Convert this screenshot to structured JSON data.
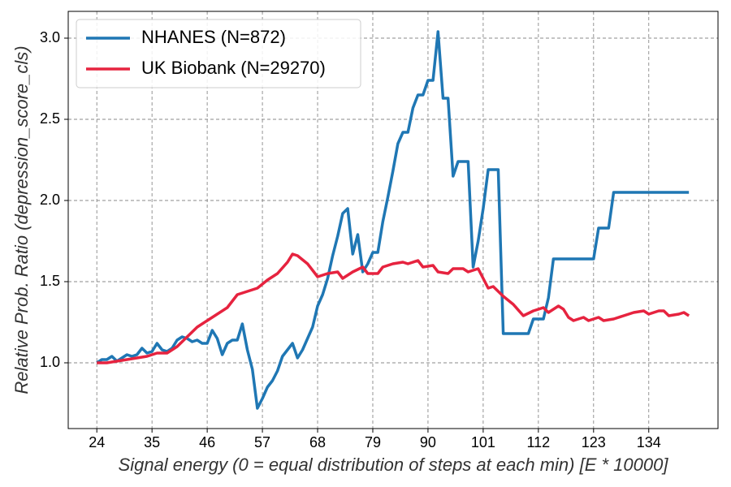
{
  "chart_data": {
    "type": "line",
    "xlabel": "Signal energy (0 = equal distribution of steps at each min) [E * 10000]",
    "ylabel": "Relative Prob. Ratio (depression_score_cls)",
    "xlim": [
      18.3,
      147.8
    ],
    "ylim": [
      0.595,
      3.165
    ],
    "xticks": [
      24,
      35,
      46,
      57,
      68,
      79,
      90,
      101,
      112,
      123,
      134
    ],
    "yticks": [
      {
        "value": 1,
        "label": "1.0"
      },
      1.5,
      {
        "value": 2,
        "label": "2.0"
      },
      2.5,
      {
        "value": 3,
        "label": "3.0"
      }
    ],
    "grid": true,
    "legend": "upper left",
    "series": [
      {
        "name": "NHANES (N=872)",
        "color": "#1f77b4",
        "x": [
          24,
          25,
          26,
          27,
          28,
          29,
          30,
          31,
          32,
          33,
          34,
          35,
          36,
          37,
          38,
          39,
          40,
          41,
          42,
          43,
          44,
          45,
          46,
          47,
          48,
          49,
          50,
          51,
          52,
          53,
          54,
          55,
          56,
          57,
          58,
          59,
          60,
          61,
          62,
          63,
          64,
          65,
          66,
          67,
          68,
          69,
          70,
          71,
          72,
          73,
          74,
          75,
          76,
          77,
          78,
          79,
          80,
          81,
          82,
          83,
          84,
          85,
          86,
          87,
          88,
          89,
          90,
          91,
          92,
          93,
          94,
          95,
          96,
          97,
          98,
          99,
          100,
          101,
          102,
          103,
          104,
          105,
          110,
          111,
          112,
          113,
          114,
          115,
          123,
          124,
          126,
          127,
          142
        ],
        "values": [
          1.0,
          1.02,
          1.02,
          1.04,
          1.01,
          1.03,
          1.05,
          1.04,
          1.05,
          1.09,
          1.06,
          1.07,
          1.12,
          1.08,
          1.07,
          1.09,
          1.14,
          1.16,
          1.15,
          1.13,
          1.14,
          1.12,
          1.12,
          1.2,
          1.15,
          1.05,
          1.12,
          1.14,
          1.14,
          1.24,
          1.08,
          0.96,
          0.72,
          0.78,
          0.85,
          0.89,
          0.95,
          1.04,
          1.08,
          1.12,
          1.03,
          1.08,
          1.15,
          1.22,
          1.35,
          1.42,
          1.52,
          1.66,
          1.78,
          1.92,
          1.95,
          1.67,
          1.79,
          1.56,
          1.61,
          1.68,
          1.68,
          1.87,
          2.02,
          2.18,
          2.35,
          2.42,
          2.42,
          2.57,
          2.65,
          2.65,
          2.74,
          2.74,
          3.04,
          2.63,
          2.63,
          2.15,
          2.24,
          2.24,
          2.24,
          1.59,
          1.75,
          1.95,
          2.19,
          2.19,
          2.19,
          1.18,
          1.18,
          1.27,
          1.27,
          1.27,
          1.4,
          1.64,
          1.64,
          1.83,
          1.83,
          2.05,
          2.05
        ]
      },
      {
        "name": "UK Biobank (N=29270)",
        "color": "#e6233f",
        "x": [
          24,
          26,
          28,
          30,
          32,
          34,
          36,
          38,
          40,
          42,
          44,
          46,
          48,
          50,
          52,
          54,
          56,
          58,
          60,
          62,
          63,
          64,
          66,
          68,
          70,
          72,
          73,
          75,
          77,
          78,
          80,
          81,
          83,
          85,
          86,
          88,
          89,
          91,
          92,
          94,
          95,
          97,
          98,
          100,
          102,
          103,
          105,
          107,
          109,
          111,
          113,
          114,
          116,
          117,
          118,
          119,
          121,
          122,
          124,
          125,
          127,
          129,
          131,
          133,
          134,
          136,
          137,
          138,
          140,
          141,
          142
        ],
        "values": [
          1.0,
          1.0,
          1.01,
          1.02,
          1.03,
          1.04,
          1.06,
          1.06,
          1.1,
          1.16,
          1.22,
          1.26,
          1.3,
          1.34,
          1.42,
          1.44,
          1.46,
          1.51,
          1.55,
          1.62,
          1.67,
          1.66,
          1.61,
          1.53,
          1.55,
          1.56,
          1.52,
          1.56,
          1.59,
          1.55,
          1.55,
          1.59,
          1.61,
          1.62,
          1.61,
          1.63,
          1.59,
          1.6,
          1.56,
          1.55,
          1.58,
          1.58,
          1.56,
          1.58,
          1.46,
          1.47,
          1.41,
          1.36,
          1.29,
          1.32,
          1.34,
          1.31,
          1.35,
          1.33,
          1.28,
          1.26,
          1.28,
          1.26,
          1.28,
          1.26,
          1.27,
          1.29,
          1.31,
          1.32,
          1.3,
          1.32,
          1.32,
          1.29,
          1.3,
          1.31,
          1.29
        ]
      }
    ]
  }
}
